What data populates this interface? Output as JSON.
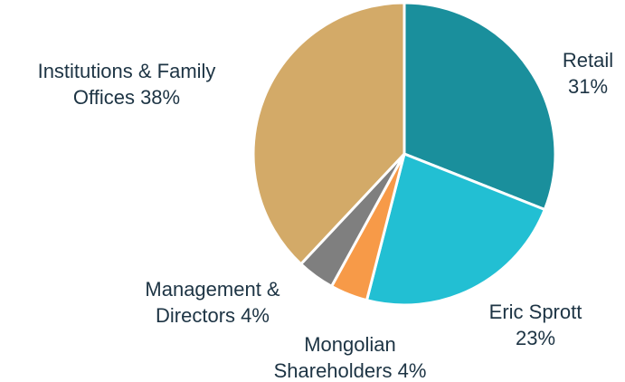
{
  "chart_data": {
    "type": "pie",
    "categories": [
      "Retail",
      "Eric Sprott",
      "Mongolian Shareholders",
      "Management & Directors",
      "Institutions & Family Offices"
    ],
    "values": [
      31,
      23,
      4,
      4,
      38
    ],
    "value_labels": [
      "31%",
      "23%",
      "4%",
      "4%",
      "38%"
    ],
    "colors": [
      "#1a8f9c",
      "#22bfd3",
      "#f79a48",
      "#7f7f7f",
      "#d3aa68"
    ]
  }
}
